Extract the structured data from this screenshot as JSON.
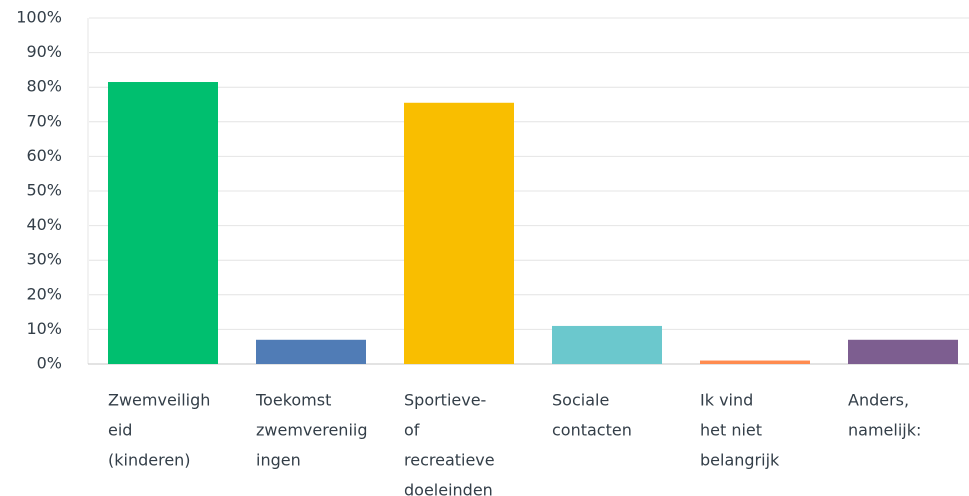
{
  "chart_data": {
    "type": "bar",
    "categories": [
      [
        "Zwemveiligh",
        "eid",
        "(kinderen)"
      ],
      [
        "Toekomst",
        "zwemvereniig",
        "ingen"
      ],
      [
        "Sportieve-",
        "of",
        "recreatieve",
        "doeleinden"
      ],
      [
        "Sociale",
        "contacten"
      ],
      [
        "Ik vind",
        "het niet",
        "belangrijk"
      ],
      [
        "Anders,",
        "namelijk:"
      ]
    ],
    "values": [
      81.5,
      7,
      75.5,
      11,
      1,
      7
    ],
    "colors": [
      "#00bf6f",
      "#507cb6",
      "#f9be00",
      "#6bc8cd",
      "#ff8b4f",
      "#7d5e90"
    ],
    "ylim": [
      0,
      100
    ],
    "yticks": [
      {
        "value": 0,
        "label": "0%"
      },
      {
        "value": 10,
        "label": "10%"
      },
      {
        "value": 20,
        "label": "20%"
      },
      {
        "value": 30,
        "label": "30%"
      },
      {
        "value": 40,
        "label": "40%"
      },
      {
        "value": 50,
        "label": "50%"
      },
      {
        "value": 60,
        "label": "60%"
      },
      {
        "value": 70,
        "label": "70%"
      },
      {
        "value": 80,
        "label": "80%"
      },
      {
        "value": 90,
        "label": "90%"
      },
      {
        "value": 100,
        "label": "100%"
      }
    ],
    "grid": true
  }
}
